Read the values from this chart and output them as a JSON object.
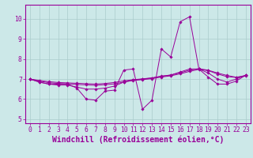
{
  "background_color": "#cce8e8",
  "line_color": "#990099",
  "grid_color": "#aacccc",
  "xlabel": "Windchill (Refroidissement éolien,°C)",
  "xlim": [
    -0.5,
    23.5
  ],
  "ylim": [
    4.8,
    10.7
  ],
  "yticks": [
    5,
    6,
    7,
    8,
    9,
    10
  ],
  "xticks": [
    0,
    1,
    2,
    3,
    4,
    5,
    6,
    7,
    8,
    9,
    10,
    11,
    12,
    13,
    14,
    15,
    16,
    17,
    18,
    19,
    20,
    21,
    22,
    23
  ],
  "series": [
    [
      7.0,
      6.85,
      6.75,
      6.75,
      6.75,
      6.55,
      6.0,
      5.95,
      6.4,
      6.45,
      7.45,
      7.5,
      5.5,
      5.95,
      8.5,
      8.1,
      9.85,
      10.1,
      7.5,
      7.1,
      6.75,
      6.75,
      6.9,
      7.2
    ],
    [
      7.0,
      6.85,
      6.75,
      6.7,
      6.7,
      6.6,
      6.5,
      6.5,
      6.55,
      6.65,
      6.85,
      6.95,
      7.0,
      7.05,
      7.15,
      7.2,
      7.35,
      7.5,
      7.5,
      7.3,
      7.0,
      6.85,
      7.0,
      7.2
    ],
    [
      7.0,
      6.9,
      6.82,
      6.78,
      6.76,
      6.73,
      6.71,
      6.69,
      6.72,
      6.76,
      6.85,
      6.93,
      6.97,
      7.02,
      7.1,
      7.16,
      7.26,
      7.38,
      7.48,
      7.42,
      7.25,
      7.12,
      7.08,
      7.15
    ],
    [
      7.0,
      6.93,
      6.87,
      6.83,
      6.81,
      6.79,
      6.77,
      6.75,
      6.78,
      6.83,
      6.91,
      6.97,
      7.01,
      7.06,
      7.13,
      7.2,
      7.31,
      7.44,
      7.52,
      7.44,
      7.3,
      7.18,
      7.09,
      7.18
    ]
  ],
  "font_family": "monospace",
  "tick_fontsize": 5.8,
  "label_fontsize": 7.0
}
